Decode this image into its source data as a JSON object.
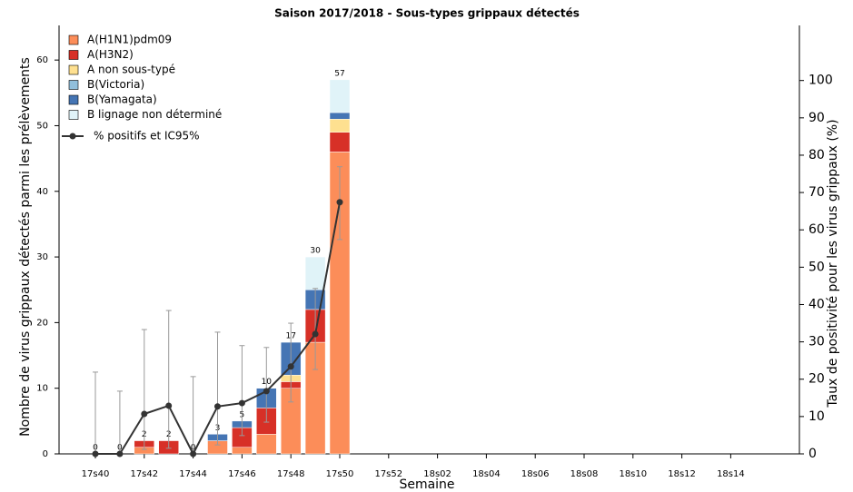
{
  "chart_data": {
    "type": "bar",
    "title": "Saison 2017/2018 - Sous-types grippaux détectés",
    "x_label": "Semaine",
    "y_label": "Nombre de virus grippaux détectés parmi les prélèvements",
    "y2_label": "Taux de positivité pour les virus grippaux (%)",
    "categories": [
      "17s40",
      null,
      "17s42",
      null,
      "17s44",
      null,
      "17s46",
      null,
      "17s48",
      null,
      "17s50",
      null,
      "17s52",
      null,
      "18s02",
      null,
      "18s04",
      null,
      "18s06",
      null,
      "18s08",
      null,
      "18s10",
      null,
      "18s12",
      null,
      "18s14",
      null
    ],
    "ylim": [
      0,
      65
    ],
    "yticks": [
      0,
      10,
      20,
      30,
      40,
      50,
      60
    ],
    "y2lim": [
      0,
      115
    ],
    "y2ticks": [
      0,
      10,
      20,
      30,
      40,
      50,
      60,
      70,
      80,
      90,
      100
    ],
    "series": [
      {
        "name": "A(H1N1)pdm09",
        "color": "#fc8d59",
        "values": [
          0,
          0,
          1,
          0,
          0,
          2,
          1,
          3,
          10,
          17,
          46,
          null,
          null,
          null,
          null,
          null,
          null,
          null,
          null,
          null,
          null,
          null,
          null,
          null,
          null,
          null,
          null,
          null
        ]
      },
      {
        "name": "A(H3N2)",
        "color": "#d73027",
        "values": [
          0,
          0,
          1,
          2,
          0,
          0,
          3,
          4,
          1,
          5,
          3,
          null,
          null,
          null,
          null,
          null,
          null,
          null,
          null,
          null,
          null,
          null,
          null,
          null,
          null,
          null,
          null,
          null
        ]
      },
      {
        "name": "A non sous-typé",
        "color": "#fee090",
        "values": [
          0,
          0,
          0,
          0,
          0,
          0,
          0,
          0,
          1,
          0,
          2,
          null,
          null,
          null,
          null,
          null,
          null,
          null,
          null,
          null,
          null,
          null,
          null,
          null,
          null,
          null,
          null,
          null
        ]
      },
      {
        "name": "B(Victoria)",
        "color": "#91bfdb",
        "values": [
          0,
          0,
          0,
          0,
          0,
          0,
          0,
          0,
          0,
          0,
          0,
          null,
          null,
          null,
          null,
          null,
          null,
          null,
          null,
          null,
          null,
          null,
          null,
          null,
          null,
          null,
          null,
          null
        ]
      },
      {
        "name": "B(Yamagata)",
        "color": "#4575b4",
        "values": [
          0,
          0,
          0,
          0,
          0,
          1,
          1,
          3,
          5,
          3,
          1,
          null,
          null,
          null,
          null,
          null,
          null,
          null,
          null,
          null,
          null,
          null,
          null,
          null,
          null,
          null,
          null,
          null
        ]
      },
      {
        "name": "B lignage non déterminé",
        "color": "#e0f3f8",
        "values": [
          0,
          0,
          0,
          0,
          0,
          0,
          0,
          0,
          0,
          5,
          5,
          null,
          null,
          null,
          null,
          null,
          null,
          null,
          null,
          null,
          null,
          null,
          null,
          null,
          null,
          null,
          null,
          null
        ]
      },
      {
        "name": "% positifs et IC95%",
        "color": "#333333",
        "axis": "y2",
        "values": [
          0,
          0,
          10.7,
          12.9,
          0,
          12.7,
          13.6,
          16.8,
          23.4,
          32.1,
          67.4,
          null,
          null,
          null,
          null,
          null,
          null,
          null,
          null,
          null,
          null,
          null,
          null,
          null,
          null,
          null,
          null,
          null
        ],
        "ci_low": [
          0,
          0,
          1.2,
          1.5,
          0,
          2.4,
          4.9,
          8.5,
          13.9,
          22.6,
          57.4,
          null,
          null,
          null,
          null,
          null,
          null,
          null,
          null,
          null,
          null,
          null,
          null,
          null,
          null,
          null,
          null,
          null
        ],
        "ci_high": [
          21.9,
          16.8,
          33.3,
          38.4,
          20.7,
          32.6,
          29,
          28.5,
          35,
          44.3,
          76.9,
          null,
          null,
          null,
          null,
          null,
          null,
          null,
          null,
          null,
          null,
          null,
          null,
          null,
          null,
          null,
          null,
          null
        ]
      }
    ],
    "totals": [
      0,
      0,
      2,
      2,
      0,
      3,
      5,
      10,
      17,
      30,
      57,
      null,
      null,
      null,
      null,
      null,
      null,
      null,
      null,
      null,
      null,
      null,
      null,
      null,
      null,
      null,
      null,
      null
    ]
  }
}
